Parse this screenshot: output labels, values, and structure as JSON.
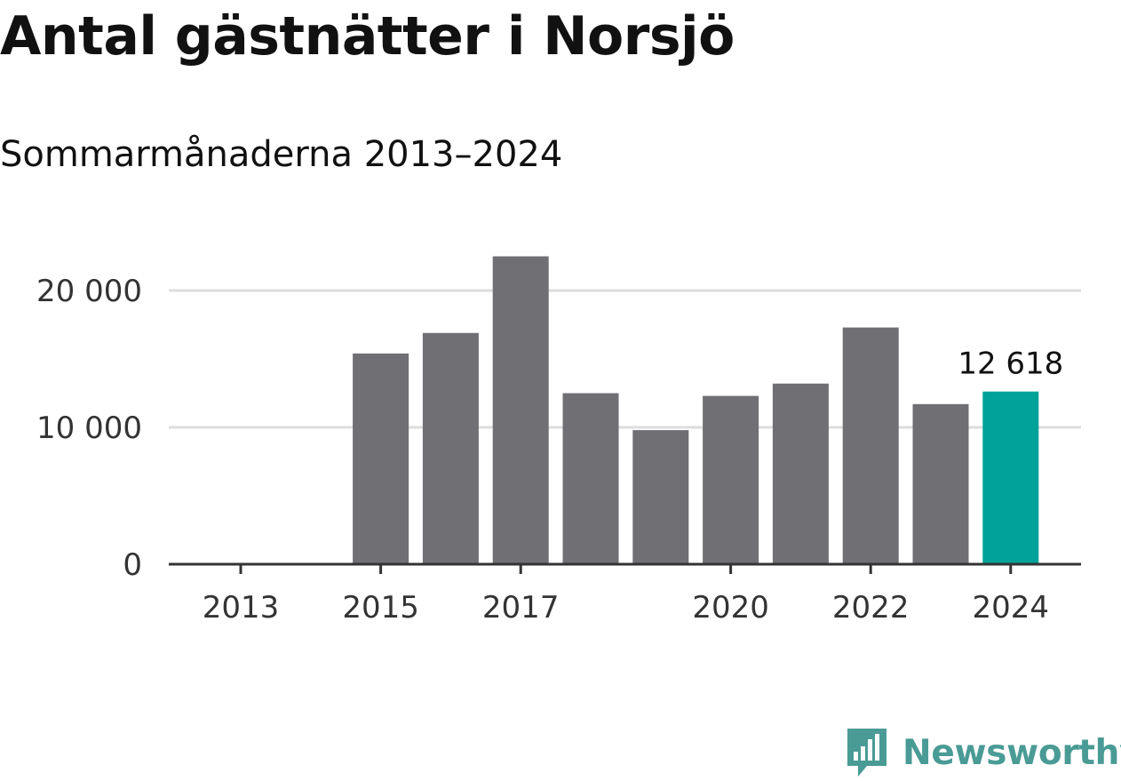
{
  "header": {
    "title": "Antal gästnätter i Norsjö",
    "subtitle": "Sommarmånaderna 2013–2024"
  },
  "brand": {
    "name": "Newsworthy",
    "icon": "bar-chart-speech-bubble-icon",
    "color": "#4a9b95"
  },
  "colors": {
    "bar": "#706f74",
    "highlight": "#00a299",
    "grid": "#dddddd",
    "axis": "#333333"
  },
  "chart_data": {
    "type": "bar",
    "title": "Antal gästnätter i Norsjö",
    "subtitle": "Sommarmånaderna 2013–2024",
    "xlabel": "",
    "ylabel": "",
    "categories": [
      "2013",
      "2014",
      "2015",
      "2016",
      "2017",
      "2018",
      "2019",
      "2020",
      "2021",
      "2022",
      "2023",
      "2024"
    ],
    "values": [
      null,
      null,
      15400,
      16900,
      22500,
      12500,
      9800,
      12300,
      13200,
      17300,
      11700,
      12618
    ],
    "x_tick_labels": [
      "2013",
      "2015",
      "2017",
      "2020",
      "2022",
      "2024"
    ],
    "y_ticks": [
      0,
      10000,
      20000
    ],
    "y_tick_labels": [
      "0",
      "10 000",
      "20 000"
    ],
    "ylim": [
      0,
      25000
    ],
    "grid": true,
    "highlight_index": 11,
    "annotations": [
      {
        "category": "2024",
        "text": "12 618"
      }
    ]
  }
}
